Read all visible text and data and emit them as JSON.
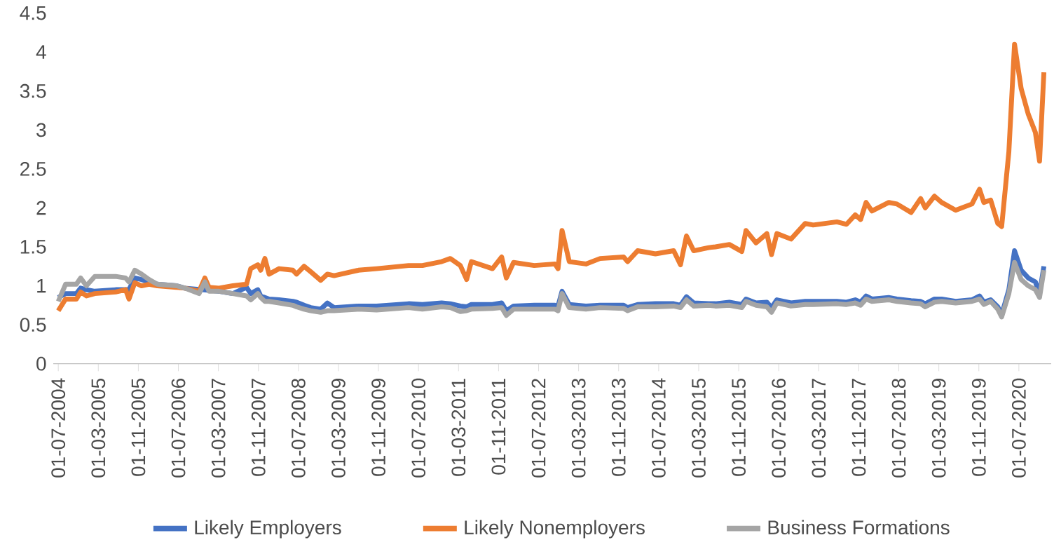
{
  "chart_data": {
    "type": "line",
    "line_style": "solid",
    "marker": "none",
    "grid": false,
    "legend": "bottom",
    "x": [
      "2004-07-01",
      "2004-08-15",
      "2004-10-20",
      "2004-11-15",
      "2004-12-20",
      "2005-02-10",
      "2005-06-15",
      "2005-08-15",
      "2005-09-05",
      "2005-10-10",
      "2005-11-20",
      "2006-01-05",
      "2006-02-25",
      "2006-06-20",
      "2006-08-10",
      "2006-11-05",
      "2006-12-10",
      "2007-01-05",
      "2007-03-05",
      "2007-05-28",
      "2007-08-20",
      "2007-09-15",
      "2007-10-28",
      "2007-11-15",
      "2007-12-10",
      "2008-01-05",
      "2008-03-05",
      "2008-05-28",
      "2008-06-20",
      "2008-08-05",
      "2008-09-15",
      "2008-11-15",
      "2008-12-25",
      "2009-02-05",
      "2009-07-01",
      "2009-10-20",
      "2010-05-01",
      "2010-07-25",
      "2010-11-20",
      "2011-01-12",
      "2011-03-12",
      "2011-04-20",
      "2011-05-18",
      "2011-09-25",
      "2011-11-20",
      "2011-12-18",
      "2012-02-01",
      "2012-06-05",
      "2012-10-10",
      "2012-10-28",
      "2012-11-22",
      "2013-01-05",
      "2013-04-15",
      "2013-07-10",
      "2013-12-01",
      "2013-12-25",
      "2014-02-25",
      "2014-06-12",
      "2014-10-01",
      "2014-11-12",
      "2014-12-18",
      "2015-02-01",
      "2015-05-01",
      "2015-06-12",
      "2015-09-05",
      "2015-11-20",
      "2015-12-15",
      "2016-02-15",
      "2016-04-20",
      "2016-05-18",
      "2016-06-20",
      "2016-09-15",
      "2016-12-10",
      "2017-01-28",
      "2017-06-20",
      "2017-08-18",
      "2017-10-10",
      "2017-11-12",
      "2017-12-15",
      "2018-01-20",
      "2018-05-01",
      "2018-06-20",
      "2018-09-15",
      "2018-11-12",
      "2018-12-10",
      "2019-02-05",
      "2019-03-18",
      "2019-06-12",
      "2019-09-20",
      "2019-11-05",
      "2019-12-01",
      "2020-01-12",
      "2020-02-25",
      "2020-03-18",
      "2020-05-01",
      "2020-06-05",
      "2020-07-15",
      "2020-08-28",
      "2020-10-10",
      "2020-11-05",
      "2020-12-01"
    ],
    "series": [
      {
        "name": "Likely Employers",
        "color": "#4472c4",
        "values": [
          0.85,
          0.9,
          0.9,
          0.97,
          0.95,
          0.93,
          0.95,
          0.95,
          0.95,
          1.1,
          1.08,
          1.05,
          1.02,
          1.0,
          0.97,
          null,
          null,
          null,
          0.93,
          0.9,
          0.98,
          0.9,
          0.95,
          0.87,
          0.85,
          0.83,
          0.82,
          0.8,
          0.79,
          0.75,
          0.72,
          0.7,
          0.78,
          0.72,
          0.74,
          0.74,
          0.77,
          0.76,
          0.78,
          0.77,
          0.74,
          0.73,
          0.76,
          0.76,
          0.78,
          0.68,
          0.74,
          0.75,
          0.75,
          0.74,
          0.93,
          0.76,
          0.74,
          0.75,
          0.75,
          0.72,
          0.76,
          0.77,
          0.77,
          0.75,
          0.86,
          0.78,
          0.77,
          0.77,
          0.79,
          0.76,
          0.83,
          0.78,
          0.79,
          0.72,
          0.82,
          0.78,
          0.8,
          0.8,
          0.8,
          0.79,
          0.82,
          0.79,
          0.87,
          0.83,
          0.85,
          0.83,
          0.81,
          0.8,
          0.77,
          0.83,
          0.83,
          0.8,
          0.82,
          0.87,
          0.79,
          0.82,
          0.73,
          0.63,
          0.95,
          1.45,
          1.2,
          1.1,
          1.05,
          0.9,
          1.25
        ]
      },
      {
        "name": "Likely Nonemployers",
        "color": "#ed7d31",
        "values": [
          0.68,
          0.83,
          0.83,
          0.92,
          0.87,
          0.9,
          0.92,
          0.95,
          0.83,
          1.04,
          1.0,
          1.02,
          1.0,
          0.98,
          0.97,
          0.93,
          1.1,
          0.98,
          0.97,
          1.0,
          1.02,
          1.22,
          1.27,
          1.2,
          1.35,
          1.15,
          1.22,
          1.2,
          1.15,
          1.25,
          1.18,
          1.07,
          1.15,
          1.13,
          1.2,
          1.22,
          1.26,
          1.26,
          1.31,
          1.35,
          1.26,
          1.08,
          1.31,
          1.22,
          1.37,
          1.1,
          1.3,
          1.26,
          1.28,
          1.22,
          1.71,
          1.31,
          1.28,
          1.35,
          1.37,
          1.31,
          1.45,
          1.41,
          1.45,
          1.27,
          1.64,
          1.45,
          1.49,
          1.5,
          1.53,
          1.44,
          1.71,
          1.55,
          1.67,
          1.4,
          1.67,
          1.6,
          1.8,
          1.78,
          1.82,
          1.79,
          1.91,
          1.85,
          2.07,
          1.96,
          2.07,
          2.05,
          1.94,
          2.12,
          2.0,
          2.15,
          2.07,
          1.97,
          2.05,
          2.24,
          2.07,
          2.1,
          1.8,
          1.76,
          2.72,
          4.1,
          3.53,
          3.2,
          2.97,
          2.6,
          3.74
        ]
      },
      {
        "name": "Business Formations",
        "color": "#a5a5a5",
        "values": [
          0.8,
          1.02,
          1.02,
          1.1,
          1.0,
          1.12,
          1.12,
          1.1,
          1.05,
          1.2,
          1.15,
          1.08,
          1.02,
          1.0,
          0.97,
          0.9,
          1.05,
          0.93,
          0.93,
          0.9,
          0.87,
          0.82,
          0.9,
          0.85,
          0.8,
          0.8,
          0.78,
          0.75,
          0.73,
          0.7,
          0.68,
          0.66,
          0.68,
          0.68,
          0.7,
          0.69,
          0.72,
          0.7,
          0.73,
          0.72,
          0.67,
          0.68,
          0.7,
          0.71,
          0.72,
          0.62,
          0.7,
          0.7,
          0.7,
          0.68,
          0.9,
          0.72,
          0.7,
          0.72,
          0.71,
          0.68,
          0.73,
          0.73,
          0.74,
          0.72,
          0.82,
          0.74,
          0.75,
          0.74,
          0.75,
          0.72,
          0.8,
          0.75,
          0.73,
          0.66,
          0.78,
          0.74,
          0.76,
          0.76,
          0.77,
          0.76,
          0.78,
          0.75,
          0.83,
          0.8,
          0.82,
          0.8,
          0.78,
          0.77,
          0.73,
          0.79,
          0.8,
          0.78,
          0.8,
          0.83,
          0.76,
          0.8,
          0.7,
          0.6,
          0.9,
          1.3,
          1.08,
          1.0,
          0.95,
          0.85,
          1.2
        ]
      }
    ],
    "xlim": [
      "2004-06-01",
      "2021-01-15"
    ],
    "xticks": [
      {
        "value": "2004-07-01",
        "label": "01-07-2004"
      },
      {
        "value": "2005-03-01",
        "label": "01-03-2005"
      },
      {
        "value": "2005-11-01",
        "label": "01-11-2005"
      },
      {
        "value": "2006-07-01",
        "label": "01-07-2006"
      },
      {
        "value": "2007-03-01",
        "label": "01-03-2007"
      },
      {
        "value": "2007-11-01",
        "label": "01-11-2007"
      },
      {
        "value": "2008-07-01",
        "label": "01-07-2008"
      },
      {
        "value": "2009-03-01",
        "label": "01-03-2009"
      },
      {
        "value": "2009-11-01",
        "label": "01-11-2009"
      },
      {
        "value": "2010-07-01",
        "label": "01-07-2010"
      },
      {
        "value": "2011-03-01",
        "label": "01-03-2011"
      },
      {
        "value": "2011-11-01",
        "label": "01-11-2011"
      },
      {
        "value": "2012-07-01",
        "label": "01-07-2012"
      },
      {
        "value": "2013-03-01",
        "label": "01-03-2013"
      },
      {
        "value": "2013-11-01",
        "label": "01-11-2013"
      },
      {
        "value": "2014-07-01",
        "label": "01-07-2014"
      },
      {
        "value": "2015-03-01",
        "label": "01-03-2015"
      },
      {
        "value": "2015-11-01",
        "label": "01-11-2015"
      },
      {
        "value": "2016-07-01",
        "label": "01-07-2016"
      },
      {
        "value": "2017-03-01",
        "label": "01-03-2017"
      },
      {
        "value": "2017-11-01",
        "label": "01-11-2017"
      },
      {
        "value": "2018-07-01",
        "label": "01-07-2018"
      },
      {
        "value": "2019-03-01",
        "label": "01-03-2019"
      },
      {
        "value": "2019-11-01",
        "label": "01-11-2019"
      },
      {
        "value": "2020-07-01",
        "label": "01-07-2020"
      }
    ],
    "ylim": [
      0,
      4.5
    ],
    "yticks": [
      0,
      0.5,
      1,
      1.5,
      2,
      2.5,
      3,
      3.5,
      4,
      4.5
    ]
  }
}
